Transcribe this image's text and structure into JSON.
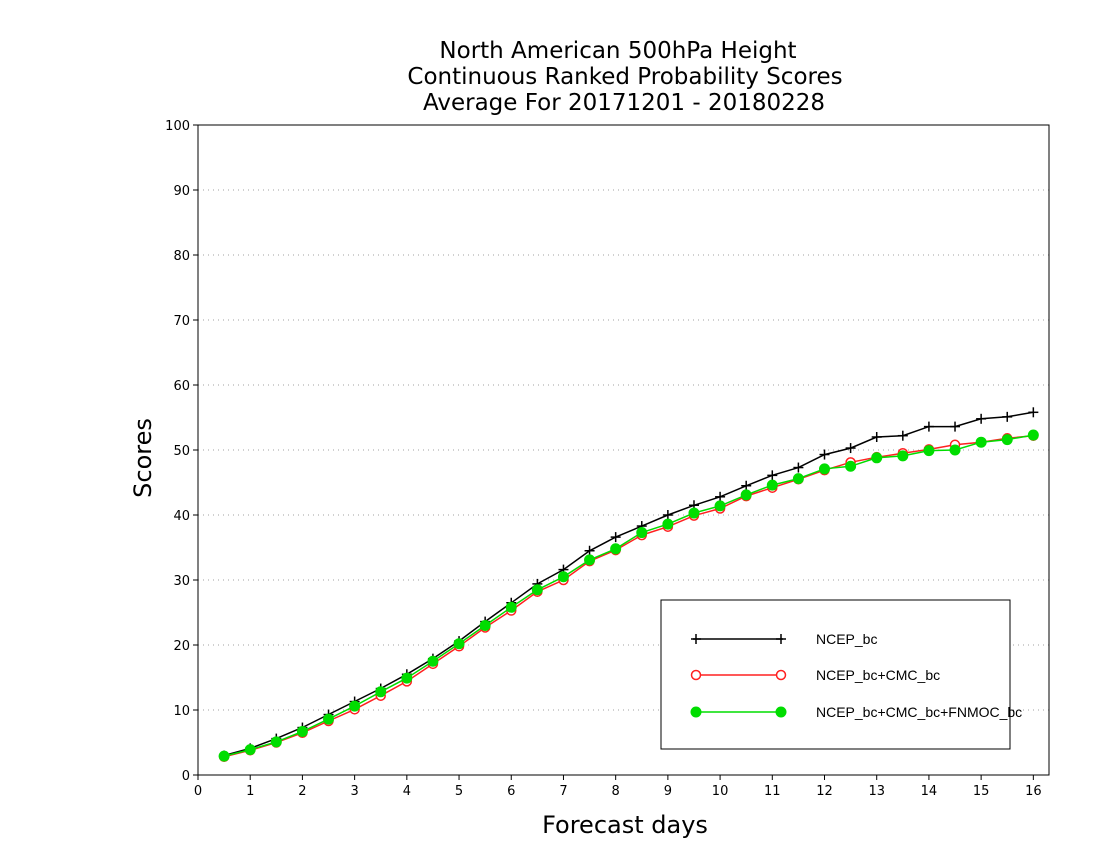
{
  "chart_data": {
    "type": "line",
    "title": [
      "North American 500hPa Height",
      "Continuous Ranked Probability Scores",
      "Average For 20171201 - 20180228"
    ],
    "xlabel": "Forecast days",
    "ylabel": "Scores",
    "xlim": [
      0,
      16.3
    ],
    "ylim": [
      0,
      100
    ],
    "xticks": [
      "0",
      "1",
      "2",
      "3",
      "4",
      "5",
      "6",
      "7",
      "8",
      "9",
      "10",
      "11",
      "12",
      "13",
      "14",
      "15",
      "16"
    ],
    "yticks": [
      "0",
      "10",
      "20",
      "30",
      "40",
      "50",
      "60",
      "70",
      "80",
      "90",
      "100"
    ],
    "grid": "horizontal dotted",
    "legend_position": "bottom-right",
    "x": [
      0.5,
      1,
      1.5,
      2,
      2.5,
      3,
      3.5,
      4,
      4.5,
      5,
      5.5,
      6,
      6.5,
      7,
      7.5,
      8,
      8.5,
      9,
      9.5,
      10,
      10.5,
      11,
      11.5,
      12,
      12.5,
      13,
      13.5,
      14,
      14.5,
      15,
      15.5,
      16
    ],
    "series": [
      {
        "name": "NCEP_bc",
        "color": "#000000",
        "marker": "plus",
        "values": [
          3.0,
          4.1,
          5.6,
          7.3,
          9.3,
          11.3,
          13.3,
          15.5,
          17.9,
          20.6,
          23.6,
          26.5,
          29.4,
          31.6,
          34.5,
          36.6,
          38.3,
          40.0,
          41.5,
          42.8,
          44.5,
          46.1,
          47.3,
          49.3,
          50.3,
          52.0,
          52.2,
          53.6,
          53.6,
          54.8,
          55.1,
          55.8
        ]
      },
      {
        "name": "NCEP_bc+CMC_bc",
        "color": "#ff2020",
        "marker": "open-circle",
        "values": [
          2.8,
          3.8,
          5.0,
          6.5,
          8.3,
          10.1,
          12.2,
          14.4,
          17.1,
          19.8,
          22.7,
          25.3,
          28.2,
          30.0,
          32.9,
          34.6,
          36.9,
          38.2,
          39.9,
          41.0,
          42.9,
          44.2,
          45.5,
          46.9,
          48.1,
          48.9,
          49.5,
          50.1,
          50.8,
          51.2,
          51.8,
          52.2
        ]
      },
      {
        "name": "NCEP_bc+CMC_bc+FNMOC_bc",
        "color": "#00dd00",
        "marker": "filled-circle",
        "values": [
          2.9,
          3.9,
          5.1,
          6.7,
          8.6,
          10.6,
          12.8,
          14.9,
          17.5,
          20.2,
          23.0,
          25.8,
          28.5,
          30.5,
          33.1,
          34.8,
          37.3,
          38.6,
          40.3,
          41.4,
          43.1,
          44.6,
          45.6,
          47.1,
          47.5,
          48.8,
          49.1,
          49.9,
          50.0,
          51.2,
          51.6,
          52.3
        ]
      }
    ]
  }
}
